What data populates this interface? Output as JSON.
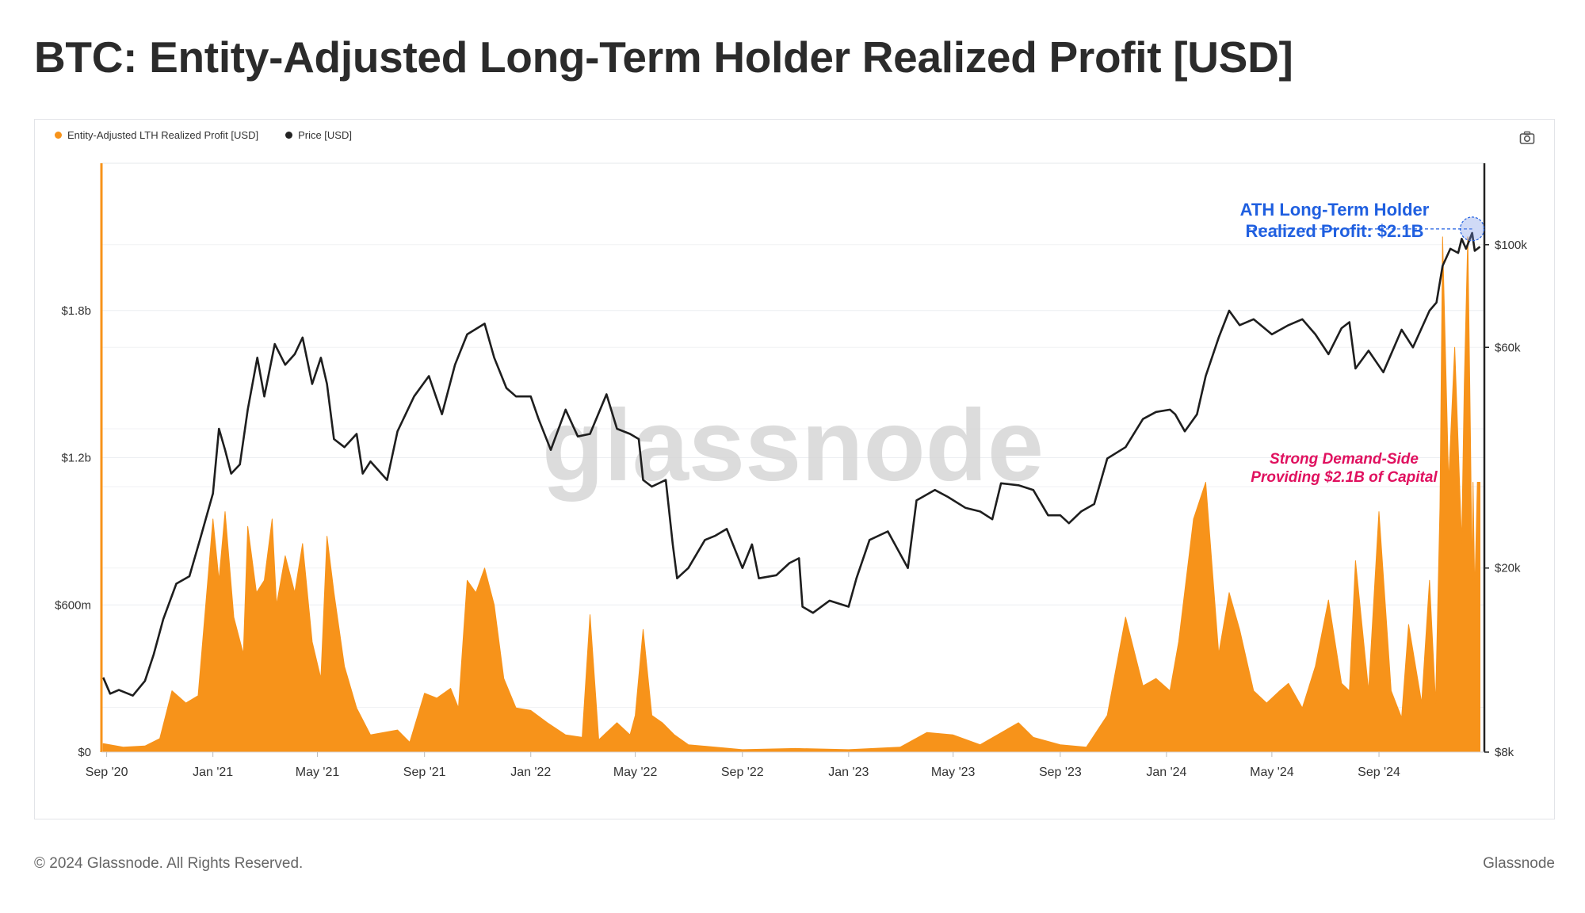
{
  "page": {
    "title": "BTC: Entity-Adjusted Long-Term Holder Realized Profit [USD]",
    "footer_left": "© 2024 Glassnode. All Rights Reserved.",
    "footer_right": "Glassnode",
    "watermark": "glassnode"
  },
  "legend": [
    {
      "label": "Entity-Adjusted LTH Realized Profit [USD]",
      "color": "#f7931a"
    },
    {
      "label": "Price [USD]",
      "color": "#222222"
    }
  ],
  "colors": {
    "profit": "#f7931a",
    "price": "#1e1e1e",
    "ath_annotation": "#1f5fe0",
    "demand_annotation": "#e0115f",
    "grid": "#eceef1"
  },
  "toolbar": {
    "camera_icon": "camera-icon"
  },
  "chart_data": {
    "type": "area",
    "x_ticks": [
      "Sep '20",
      "Jan '21",
      "May '21",
      "Sep '21",
      "Jan '22",
      "May '22",
      "Sep '22",
      "Jan '23",
      "May '23",
      "Sep '23",
      "Jan '24",
      "May '24",
      "Sep '24"
    ],
    "x_tick_dates": [
      "2020-09-01",
      "2021-01-01",
      "2021-05-01",
      "2021-09-01",
      "2022-01-01",
      "2022-05-01",
      "2022-09-01",
      "2023-01-01",
      "2023-05-01",
      "2023-09-01",
      "2024-01-01",
      "2024-05-01",
      "2024-09-01"
    ],
    "x_range": [
      "2020-08-26",
      "2024-12-31"
    ],
    "y_left": {
      "ticks": [
        0,
        600000000,
        1200000000,
        1800000000
      ],
      "tick_labels": [
        "$0",
        "$600m",
        "$1.2b",
        "$1.8b"
      ],
      "range": [
        0,
        2400000000
      ]
    },
    "y_right": {
      "scale": "log",
      "ticks": [
        8000,
        20000,
        60000,
        100000
      ],
      "tick_labels": [
        "$8k",
        "$20k",
        "$60k",
        "$100k"
      ],
      "range": [
        8000,
        150000
      ]
    },
    "series": [
      {
        "name": "Entity-Adjusted LTH Realized Profit [USD]",
        "axis": "left",
        "x": [
          "2020-08-28",
          "2020-09-20",
          "2020-10-15",
          "2020-11-01",
          "2020-11-15",
          "2020-12-01",
          "2020-12-15",
          "2021-01-01",
          "2021-01-08",
          "2021-01-15",
          "2021-01-25",
          "2021-02-05",
          "2021-02-10",
          "2021-02-20",
          "2021-03-01",
          "2021-03-10",
          "2021-03-15",
          "2021-03-25",
          "2021-04-05",
          "2021-04-14",
          "2021-04-25",
          "2021-05-05",
          "2021-05-12",
          "2021-05-20",
          "2021-06-01",
          "2021-06-15",
          "2021-07-01",
          "2021-08-01",
          "2021-08-15",
          "2021-09-01",
          "2021-09-15",
          "2021-10-01",
          "2021-10-10",
          "2021-10-20",
          "2021-10-30",
          "2021-11-09",
          "2021-11-20",
          "2021-12-01",
          "2021-12-15",
          "2022-01-01",
          "2022-01-20",
          "2022-02-10",
          "2022-03-01",
          "2022-03-10",
          "2022-03-20",
          "2022-03-29",
          "2022-04-10",
          "2022-04-25",
          "2022-05-01",
          "2022-05-10",
          "2022-05-20",
          "2022-06-01",
          "2022-06-15",
          "2022-07-01",
          "2022-09-01",
          "2022-11-01",
          "2023-01-01",
          "2023-03-01",
          "2023-04-01",
          "2023-05-01",
          "2023-06-01",
          "2023-07-15",
          "2023-08-01",
          "2023-09-01",
          "2023-10-01",
          "2023-10-25",
          "2023-11-15",
          "2023-12-05",
          "2023-12-20",
          "2024-01-05",
          "2024-01-15",
          "2024-02-01",
          "2024-02-15",
          "2024-03-01",
          "2024-03-13",
          "2024-03-25",
          "2024-04-10",
          "2024-04-25",
          "2024-05-10",
          "2024-05-20",
          "2024-06-05",
          "2024-06-20",
          "2024-07-05",
          "2024-07-20",
          "2024-07-29",
          "2024-08-05",
          "2024-08-20",
          "2024-09-01",
          "2024-09-15",
          "2024-09-27",
          "2024-10-05",
          "2024-10-20",
          "2024-10-29",
          "2024-11-05",
          "2024-11-10",
          "2024-11-13",
          "2024-11-20",
          "2024-11-27",
          "2024-12-05",
          "2024-12-08",
          "2024-12-12",
          "2024-12-15",
          "2024-12-17",
          "2024-12-18",
          "2024-12-20",
          "2024-12-23",
          "2024-12-26"
        ],
        "values": [
          35000000,
          20000000,
          25000000,
          55000000,
          250000000,
          200000000,
          230000000,
          950000000,
          700000000,
          980000000,
          550000000,
          400000000,
          920000000,
          650000000,
          700000000,
          950000000,
          600000000,
          800000000,
          650000000,
          850000000,
          450000000,
          300000000,
          880000000,
          650000000,
          350000000,
          180000000,
          70000000,
          90000000,
          40000000,
          240000000,
          220000000,
          260000000,
          180000000,
          700000000,
          650000000,
          750000000,
          600000000,
          300000000,
          180000000,
          170000000,
          120000000,
          70000000,
          60000000,
          560000000,
          50000000,
          80000000,
          120000000,
          70000000,
          150000000,
          500000000,
          150000000,
          120000000,
          70000000,
          30000000,
          10000000,
          15000000,
          10000000,
          20000000,
          80000000,
          70000000,
          30000000,
          120000000,
          60000000,
          30000000,
          20000000,
          150000000,
          550000000,
          270000000,
          300000000,
          250000000,
          450000000,
          950000000,
          1100000000,
          400000000,
          650000000,
          500000000,
          250000000,
          200000000,
          250000000,
          280000000,
          180000000,
          350000000,
          620000000,
          280000000,
          250000000,
          780000000,
          250000000,
          980000000,
          250000000,
          140000000,
          520000000,
          200000000,
          700000000,
          200000000,
          1000000000,
          2100000000,
          1100000000,
          1650000000,
          850000000,
          1500000000,
          2100000000,
          1300000000,
          700000000,
          1100000000,
          650000000,
          1100000000,
          1100000000
        ]
      },
      {
        "name": "Price [USD]",
        "axis": "right",
        "x": [
          "2020-08-28",
          "2020-09-05",
          "2020-09-15",
          "2020-10-01",
          "2020-10-15",
          "2020-10-25",
          "2020-11-05",
          "2020-11-20",
          "2020-12-05",
          "2020-12-17",
          "2021-01-01",
          "2021-01-08",
          "2021-01-15",
          "2021-01-22",
          "2021-02-01",
          "2021-02-10",
          "2021-02-21",
          "2021-03-01",
          "2021-03-13",
          "2021-03-25",
          "2021-04-05",
          "2021-04-14",
          "2021-04-25",
          "2021-05-05",
          "2021-05-12",
          "2021-05-20",
          "2021-06-01",
          "2021-06-15",
          "2021-06-22",
          "2021-07-01",
          "2021-07-20",
          "2021-08-01",
          "2021-08-20",
          "2021-09-06",
          "2021-09-21",
          "2021-10-06",
          "2021-10-20",
          "2021-11-09",
          "2021-11-20",
          "2021-12-04",
          "2021-12-15",
          "2022-01-01",
          "2022-01-10",
          "2022-01-24",
          "2022-02-10",
          "2022-02-24",
          "2022-03-10",
          "2022-03-29",
          "2022-04-10",
          "2022-04-25",
          "2022-05-05",
          "2022-05-10",
          "2022-05-20",
          "2022-06-05",
          "2022-06-13",
          "2022-06-18",
          "2022-07-01",
          "2022-07-20",
          "2022-08-01",
          "2022-08-14",
          "2022-09-01",
          "2022-09-12",
          "2022-09-20",
          "2022-10-10",
          "2022-10-25",
          "2022-11-05",
          "2022-11-09",
          "2022-11-21",
          "2022-12-10",
          "2023-01-01",
          "2023-01-10",
          "2023-01-25",
          "2023-02-15",
          "2023-03-10",
          "2023-03-20",
          "2023-04-10",
          "2023-04-25",
          "2023-05-15",
          "2023-06-01",
          "2023-06-15",
          "2023-06-25",
          "2023-07-15",
          "2023-08-01",
          "2023-08-18",
          "2023-09-01",
          "2023-09-11",
          "2023-09-25",
          "2023-10-10",
          "2023-10-25",
          "2023-11-15",
          "2023-12-05",
          "2023-12-20",
          "2024-01-05",
          "2024-01-11",
          "2024-01-22",
          "2024-02-05",
          "2024-02-15",
          "2024-03-01",
          "2024-03-13",
          "2024-03-25",
          "2024-04-10",
          "2024-05-01",
          "2024-05-20",
          "2024-06-05",
          "2024-06-20",
          "2024-07-05",
          "2024-07-20",
          "2024-07-29",
          "2024-08-05",
          "2024-08-20",
          "2024-09-06",
          "2024-09-27",
          "2024-10-10",
          "2024-10-29",
          "2024-11-06",
          "2024-11-13",
          "2024-11-22",
          "2024-12-01",
          "2024-12-05",
          "2024-12-10",
          "2024-12-17",
          "2024-12-20",
          "2024-12-26"
        ],
        "values": [
          11600,
          10700,
          10900,
          10600,
          11400,
          13000,
          15500,
          18500,
          19200,
          23000,
          29000,
          40000,
          36000,
          32000,
          33500,
          44000,
          57000,
          47000,
          61000,
          55000,
          58000,
          63000,
          50000,
          57000,
          50000,
          38000,
          36500,
          39000,
          32000,
          34000,
          31000,
          39500,
          47000,
          52000,
          43000,
          55000,
          64000,
          67500,
          57000,
          49000,
          47000,
          47000,
          42000,
          36000,
          44000,
          38500,
          39000,
          47500,
          40000,
          39000,
          38000,
          31000,
          30000,
          31000,
          22500,
          19000,
          20000,
          23000,
          23500,
          24300,
          20000,
          22500,
          19000,
          19300,
          20500,
          21000,
          16500,
          16000,
          17000,
          16500,
          19000,
          23000,
          24000,
          20000,
          28000,
          29500,
          28500,
          27000,
          26500,
          25500,
          30500,
          30200,
          29500,
          26000,
          26000,
          25000,
          26500,
          27500,
          34500,
          36500,
          42000,
          43500,
          44000,
          43000,
          39500,
          43000,
          52000,
          63000,
          72000,
          67000,
          69000,
          64000,
          67000,
          69000,
          64000,
          58000,
          66000,
          68000,
          54000,
          59000,
          53000,
          65500,
          60000,
          72000,
          75000,
          90000,
          98000,
          96000,
          103000,
          98000,
          106000,
          97000,
          99000
        ]
      }
    ],
    "annotations": [
      {
        "text_lines": [
          "ATH Long-Term Holder",
          "Realized Profit: $2.1B"
        ],
        "color": "#1f5fe0",
        "x": "2024-12-17",
        "y": 2100000000
      },
      {
        "text_lines": [
          "Strong Demand-Side",
          "Providing $2.1B of Capital"
        ],
        "color": "#e0115f"
      }
    ],
    "grid": true,
    "legend_position": "top-left"
  }
}
